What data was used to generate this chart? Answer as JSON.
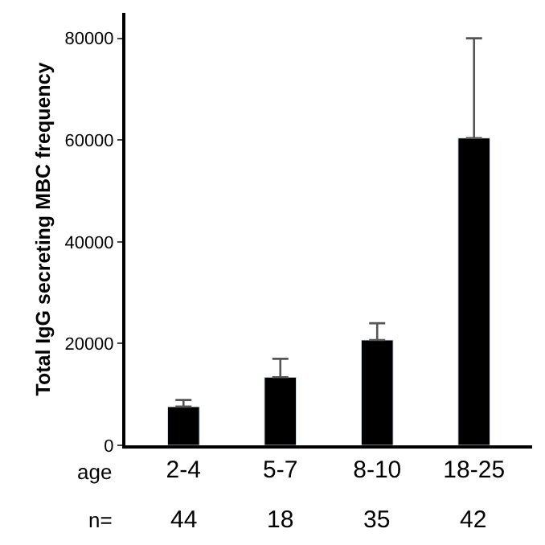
{
  "chart_data": {
    "type": "bar",
    "ylabel": "Total IgG secreting MBC frequency",
    "xlabel": "age",
    "categories": [
      "2-4",
      "5-7",
      "8-10",
      "18-25"
    ],
    "values": [
      7600,
      13400,
      20700,
      60400
    ],
    "errors": [
      [
        7600,
        8900
      ],
      [
        13400,
        17000
      ],
      [
        20700,
        24000
      ],
      [
        60400,
        80000
      ]
    ],
    "color": "#000000",
    "ylim": [
      0,
      85000
    ],
    "yticks": [
      0,
      20000,
      40000,
      60000,
      80000
    ],
    "annotations": [
      "n=",
      "44",
      "18",
      "35",
      "42"
    ]
  }
}
